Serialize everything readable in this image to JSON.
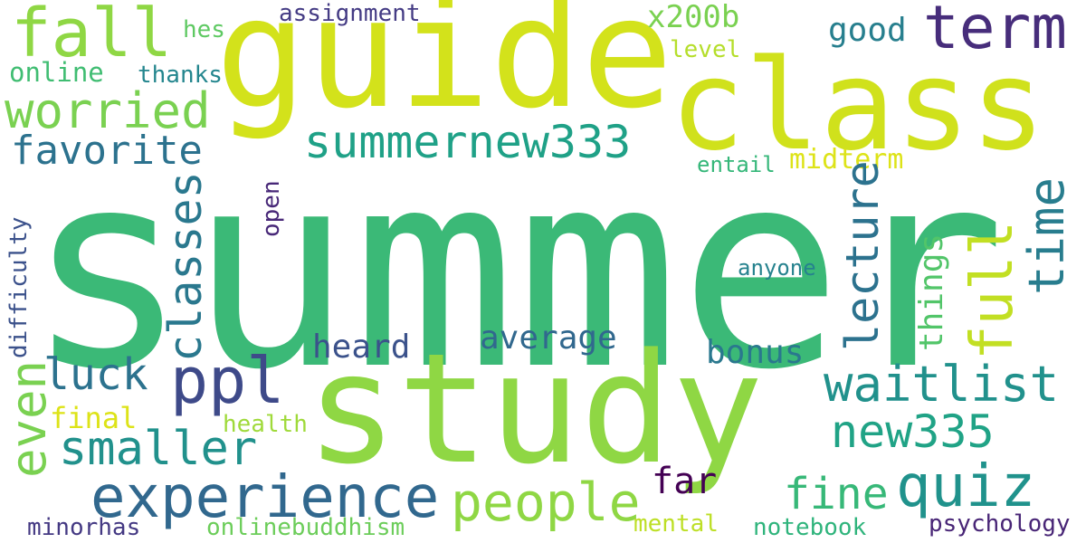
{
  "wordcloud": {
    "background": "#ffffff",
    "palette": "viridis",
    "words": {
      "summer": "summer",
      "study": "study",
      "guide": "guide",
      "class": "class",
      "fall": "fall",
      "term": "term",
      "worried": "worried",
      "online": "online",
      "thanks": "thanks",
      "hes": "hes",
      "assignment": "assignment",
      "x200b": "x200b",
      "good": "good",
      "level": "level",
      "favorite": "favorite",
      "summernew333": "summernew333",
      "midterm": "midterm",
      "entail": "entail",
      "anyone": "anyone",
      "ppl": "ppl",
      "luck": "luck",
      "heard": "heard",
      "average": "average",
      "bonus": "bonus",
      "waitlist": "waitlist",
      "new335": "new335",
      "smaller": "smaller",
      "final": "final",
      "health": "health",
      "experience": "experience",
      "people": "people",
      "far": "far",
      "fine": "fine",
      "quiz": "quiz",
      "minorhas": "minorhas",
      "onlinebuddhism": "onlinebuddhism",
      "mental": "mental",
      "notebook": "notebook",
      "psychology": "psychology",
      "classes": "classes",
      "open": "open",
      "lecture": "lecture",
      "full": "full",
      "time": "time",
      "things": "things",
      "even": "even",
      "difficulty": "difficulty"
    }
  }
}
